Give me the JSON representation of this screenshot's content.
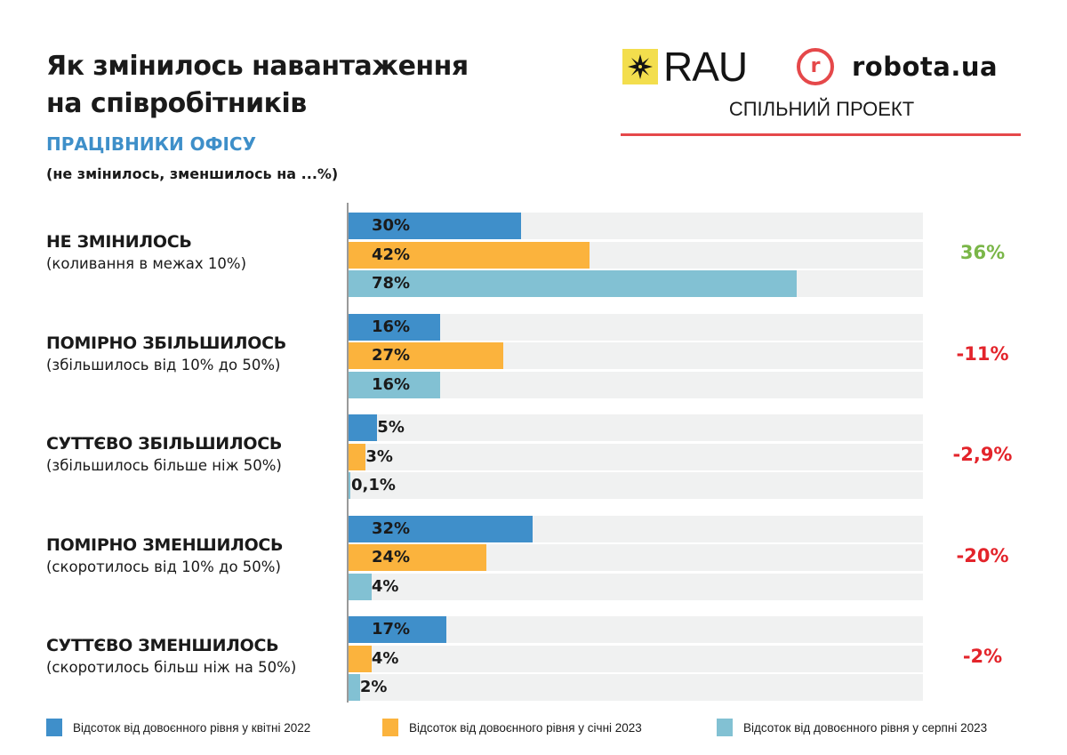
{
  "header": {
    "title_line1": "Як змінилось навантаження",
    "title_line2": "на співробітників",
    "subtitle": "ПРАЦІВНИКИ ОФІСУ",
    "note": "(не змінилось, зменшилось на ...%)"
  },
  "logos": {
    "rau": "RAU",
    "robota_mark": "r",
    "robota": "robota.ua",
    "joint_project": "СПІЛЬНИЙ ПРОЕКТ"
  },
  "colors": {
    "series_april_2022": "#3f8fca",
    "series_january_2023": "#fbb33d",
    "series_august_2023": "#82c1d3",
    "positive_delta": "#7ab648",
    "negative_delta": "#e3242b",
    "track": "#f0f1f1"
  },
  "chart_data": {
    "type": "bar",
    "orientation": "horizontal",
    "title": "Як змінилось навантаження на співробітників",
    "subtitle": "ПРАЦІВНИКИ ОФІСУ",
    "xlim": [
      0,
      100
    ],
    "unit": "%",
    "categories": [
      {
        "title": "НЕ ЗМІНИЛОСЬ",
        "description": "(коливання в межах 10%)",
        "delta": "36%",
        "delta_sign": "positive"
      },
      {
        "title": "ПОМІРНО ЗБІЛЬШИЛОСЬ",
        "description": "(збільшилось від 10% до 50%)",
        "delta": "-11%",
        "delta_sign": "negative"
      },
      {
        "title": "СУТТЄВО ЗБІЛЬШИЛОСЬ",
        "description": "(збільшилось більше ніж 50%)",
        "delta": "-2,9%",
        "delta_sign": "negative"
      },
      {
        "title": "ПОМІРНО ЗМЕНШИЛОСЬ",
        "description": "(скоротилось від 10% до 50%)",
        "delta": "-20%",
        "delta_sign": "negative"
      },
      {
        "title": "СУТТЄВО ЗМЕНШИЛОСЬ",
        "description": "(скоротилось більш ніж на 50%)",
        "delta": "-2%",
        "delta_sign": "negative"
      }
    ],
    "series": [
      {
        "name": "Відсоток від довоєнного рівня у квітні 2022",
        "values": [
          30,
          16,
          5,
          32,
          17
        ],
        "labels": [
          "30%",
          "16%",
          "5%",
          "32%",
          "17%"
        ]
      },
      {
        "name": "Відсоток від довоєнного рівня у січні 2023",
        "values": [
          42,
          27,
          3,
          24,
          4
        ],
        "labels": [
          "42%",
          "27%",
          "3%",
          "24%",
          "4%"
        ]
      },
      {
        "name": "Відсоток від довоєнного рівня у серпні 2023",
        "values": [
          78,
          16,
          0.1,
          4,
          2
        ],
        "labels": [
          "78%",
          "16%",
          "0,1%",
          "4%",
          "2%"
        ]
      }
    ],
    "legend_position": "bottom"
  }
}
